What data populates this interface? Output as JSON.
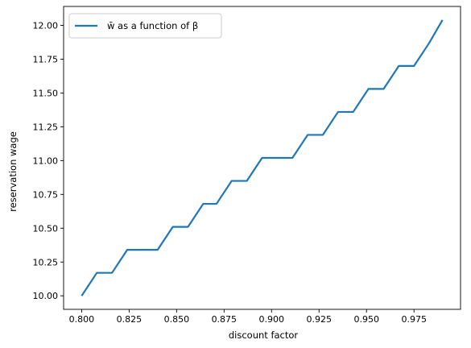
{
  "chart_data": {
    "type": "line",
    "xlabel": "discount factor",
    "ylabel": "reservation wage",
    "xlim": [
      0.7905,
      0.9995
    ],
    "ylim": [
      9.9,
      12.14
    ],
    "grid": false,
    "legend_position": "top-left",
    "xticks": [
      0.8,
      0.825,
      0.85,
      0.875,
      0.9,
      0.925,
      0.95,
      0.975
    ],
    "xtick_labels": [
      "0.800",
      "0.825",
      "0.850",
      "0.875",
      "0.900",
      "0.925",
      "0.950",
      "0.975"
    ],
    "yticks": [
      10.0,
      10.25,
      10.5,
      10.75,
      11.0,
      11.25,
      11.5,
      11.75,
      12.0
    ],
    "ytick_labels": [
      "10.00",
      "10.25",
      "10.50",
      "10.75",
      "11.00",
      "11.25",
      "11.50",
      "11.75",
      "12.00"
    ],
    "series": [
      {
        "name": "w̄ as a function of β",
        "color": "#1f77b4",
        "x": [
          0.8,
          0.808,
          0.816,
          0.824,
          0.832,
          0.84,
          0.848,
          0.856,
          0.864,
          0.871,
          0.879,
          0.887,
          0.895,
          0.903,
          0.911,
          0.919,
          0.927,
          0.935,
          0.943,
          0.951,
          0.959,
          0.967,
          0.975,
          0.983,
          0.99
        ],
        "y": [
          10.0,
          10.17,
          10.17,
          10.34,
          10.34,
          10.34,
          10.51,
          10.51,
          10.68,
          10.68,
          10.85,
          10.85,
          11.02,
          11.02,
          11.02,
          11.19,
          11.19,
          11.36,
          11.36,
          11.53,
          11.53,
          11.7,
          11.7,
          11.87,
          12.04
        ]
      }
    ]
  }
}
